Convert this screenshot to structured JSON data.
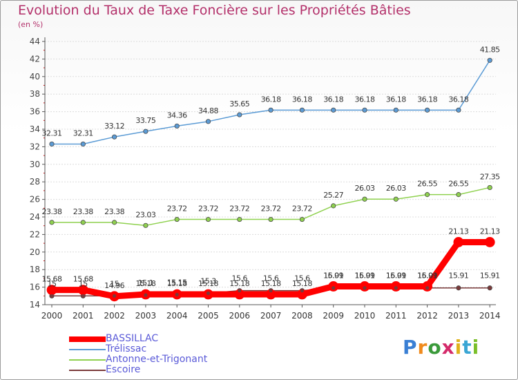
{
  "chart_data": {
    "type": "line",
    "title": "Evolution du Taux de Taxe Foncière sur les Propriétés Bâties",
    "subtitle": "(en %)",
    "x": [
      "2000",
      "2001",
      "2002",
      "2003",
      "2004",
      "2005",
      "2006",
      "2007",
      "2008",
      "2009",
      "2010",
      "2011",
      "2012",
      "2013",
      "2014"
    ],
    "ylim": [
      14,
      44
    ],
    "yticks": [
      14,
      16,
      18,
      20,
      22,
      24,
      26,
      28,
      30,
      32,
      34,
      36,
      38,
      40,
      42,
      44
    ],
    "grid": "horizontal",
    "legend_position": "bottom-left",
    "series": [
      {
        "name": "BASSILLAC",
        "color": "#ff0000",
        "values": [
          15.68,
          15.68,
          14.96,
          15.18,
          15.18,
          15.18,
          15.18,
          15.18,
          15.18,
          16.09,
          16.09,
          16.09,
          16.09,
          21.13,
          21.13
        ],
        "labels": [
          "15.68",
          "15.68",
          "14.96",
          "15.18",
          "15.18",
          "15.18",
          "15.18",
          "15.18",
          "15.18",
          "16.09",
          "16.09",
          "16.09",
          "16.09",
          "21.13",
          "21.13"
        ]
      },
      {
        "name": "Trélissac",
        "color": "#5b9bd5",
        "values": [
          32.31,
          32.31,
          33.12,
          33.75,
          34.36,
          34.88,
          35.65,
          36.18,
          36.18,
          36.18,
          36.18,
          36.18,
          36.18,
          36.18,
          41.85
        ],
        "labels": [
          "32.31",
          "32.31",
          "33.12",
          "33.75",
          "34.36",
          "34.88",
          "35.65",
          "36.18",
          "36.18",
          "36.18",
          "36.18",
          "36.18",
          "36.18",
          "36.18",
          "41.85"
        ]
      },
      {
        "name": "Antonne-et-Trigonant",
        "color": "#8fd14f",
        "values": [
          23.38,
          23.38,
          23.38,
          23.03,
          23.72,
          23.72,
          23.72,
          23.72,
          23.72,
          25.27,
          26.03,
          26.03,
          26.55,
          26.55,
          27.35
        ],
        "labels": [
          "23.38",
          "23.38",
          "23.38",
          "23.03",
          "23.72",
          "23.72",
          "23.72",
          "23.72",
          "23.72",
          "25.27",
          "26.03",
          "26.03",
          "26.55",
          "26.55",
          "27.35"
        ]
      },
      {
        "name": "Escoire",
        "color": "#7a3a3a",
        "values": [
          15,
          15,
          15,
          15.1,
          15.15,
          15.3,
          15.6,
          15.6,
          15.6,
          15.91,
          15.91,
          15.91,
          15.91,
          15.91,
          15.91
        ],
        "labels": [
          "15",
          "15",
          "15",
          "15.1",
          "15.15",
          "15.3",
          "15.6",
          "15.6",
          "15.6",
          "15.91",
          "15.91",
          "15.91",
          "15.91",
          "15.91",
          "15.91"
        ]
      }
    ]
  },
  "logo": {
    "text": "Proxiti"
  }
}
